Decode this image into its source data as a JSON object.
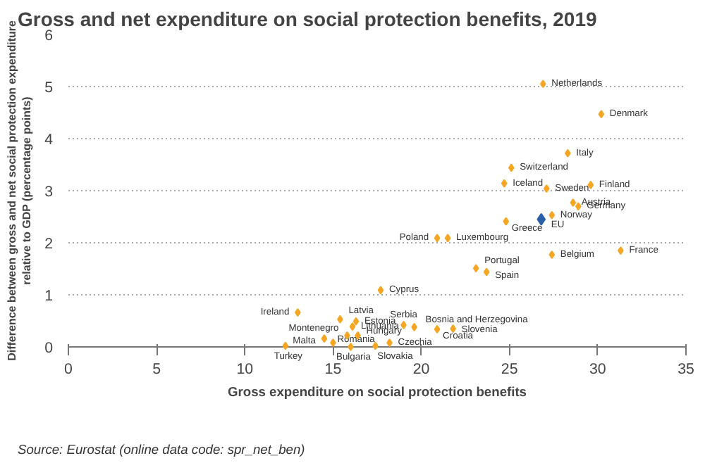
{
  "chart_data": {
    "type": "scatter",
    "title": "Gross and net expenditure on social protection benefits, 2019",
    "xlabel": "Gross expenditure on social protection benefits",
    "ylabel": "Difference between gross and net social protection expenditure\nrelative to GDP (percentage points)",
    "xlim": [
      0,
      35
    ],
    "xticks": [
      0,
      5,
      10,
      15,
      20,
      25,
      30,
      35
    ],
    "ylim": [
      0,
      6
    ],
    "yticks": [
      0,
      1,
      2,
      3,
      4,
      5,
      6
    ],
    "grid": "y",
    "marker": "diamond",
    "series": [
      {
        "color": "#f5a623",
        "x": [
          26.9,
          30.2,
          28.3,
          25.1,
          24.7,
          27.1,
          29.6,
          28.6,
          28.9,
          27.4,
          24.8,
          20.9,
          21.5,
          31.3,
          27.4,
          23.1,
          23.7,
          17.7,
          13.0,
          15.4,
          16.3,
          16.1,
          15.8,
          16.4,
          14.5,
          15.0,
          16.0,
          12.3,
          17.4,
          18.2,
          19.0,
          19.6,
          20.9,
          21.8
        ],
        "values": [
          5.05,
          4.47,
          3.72,
          3.44,
          3.14,
          3.04,
          3.11,
          2.77,
          2.7,
          2.53,
          2.41,
          2.09,
          2.09,
          1.85,
          1.77,
          1.51,
          1.44,
          1.09,
          0.66,
          0.53,
          0.49,
          0.39,
          0.22,
          0.22,
          0.16,
          0.08,
          0.0,
          0.02,
          0.02,
          0.08,
          0.42,
          0.38,
          0.34,
          0.35
        ]
      },
      {
        "color": "#2a5ea8",
        "x": [
          26.8
        ],
        "values": [
          2.45
        ]
      }
    ],
    "annotations": [
      {
        "text": "Netherlands",
        "x": 26.9,
        "y": 5.05
      },
      {
        "text": "Denmark",
        "x": 30.2,
        "y": 4.47
      },
      {
        "text": "Italy",
        "x": 28.3,
        "y": 3.72
      },
      {
        "text": "Switzerland",
        "x": 25.1,
        "y": 3.44
      },
      {
        "text": "Iceland",
        "x": 24.7,
        "y": 3.14
      },
      {
        "text": "Sweden",
        "x": 27.1,
        "y": 3.04
      },
      {
        "text": "Finland",
        "x": 29.6,
        "y": 3.11
      },
      {
        "text": "Austria",
        "x": 28.6,
        "y": 2.77
      },
      {
        "text": "Germany",
        "x": 28.9,
        "y": 2.7
      },
      {
        "text": "Norway",
        "x": 27.4,
        "y": 2.53
      },
      {
        "text": "Greece",
        "x": 24.8,
        "y": 2.41
      },
      {
        "text": "Poland",
        "x": 20.9,
        "y": 2.09
      },
      {
        "text": "Luxembourg",
        "x": 21.5,
        "y": 2.09
      },
      {
        "text": "France",
        "x": 31.3,
        "y": 1.85
      },
      {
        "text": "Belgium",
        "x": 27.4,
        "y": 1.77
      },
      {
        "text": "Portugal",
        "x": 23.1,
        "y": 1.51
      },
      {
        "text": "Spain",
        "x": 23.7,
        "y": 1.44
      },
      {
        "text": "Cyprus",
        "x": 17.7,
        "y": 1.09
      },
      {
        "text": "Ireland",
        "x": 13.0,
        "y": 0.66
      },
      {
        "text": "Latvia",
        "x": 15.4,
        "y": 0.53
      },
      {
        "text": "Estonia",
        "x": 16.3,
        "y": 0.49
      },
      {
        "text": "Lithuania",
        "x": 16.1,
        "y": 0.39
      },
      {
        "text": "Montenegro",
        "x": 15.8,
        "y": 0.22
      },
      {
        "text": "Hungary",
        "x": 16.4,
        "y": 0.22
      },
      {
        "text": "Malta",
        "x": 14.5,
        "y": 0.16
      },
      {
        "text": "Romania",
        "x": 15.0,
        "y": 0.08
      },
      {
        "text": "Bulgaria",
        "x": 16.0,
        "y": 0.0
      },
      {
        "text": "Turkey",
        "x": 12.3,
        "y": 0.02
      },
      {
        "text": "Slovakia",
        "x": 17.4,
        "y": 0.02
      },
      {
        "text": "Czechia",
        "x": 18.2,
        "y": 0.08
      },
      {
        "text": "Serbia",
        "x": 19.0,
        "y": 0.42
      },
      {
        "text": "Bosnia and Herzegovina",
        "x": 19.6,
        "y": 0.38
      },
      {
        "text": "Croatia",
        "x": 20.9,
        "y": 0.34
      },
      {
        "text": "Slovenia",
        "x": 21.8,
        "y": 0.35
      },
      {
        "text": "EU",
        "x": 26.8,
        "y": 2.45
      },
      "Source: Eurostat (online data code: spr_net_ben)"
    ]
  }
}
